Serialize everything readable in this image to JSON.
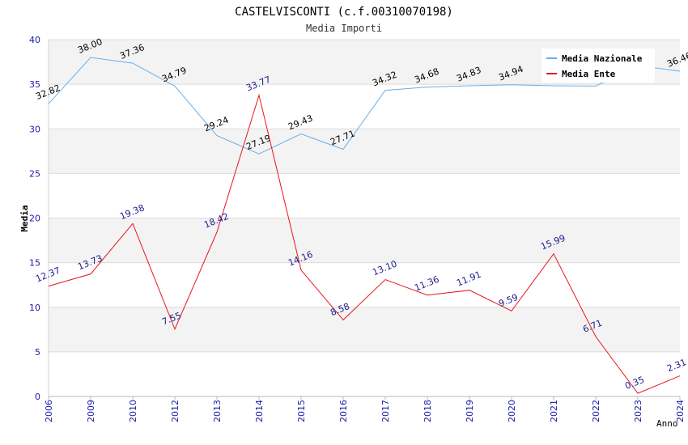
{
  "chart_data": {
    "type": "line",
    "title": "CASTELVISCONTI (c.f.00310070198)",
    "subtitle": "Media Importi",
    "xlabel": "Anno",
    "ylabel": "Media",
    "ylim": [
      0,
      40
    ],
    "yticks": [
      "0",
      "5",
      "10",
      "15",
      "20",
      "25",
      "30",
      "35",
      "40"
    ],
    "categories": [
      "2006",
      "2009",
      "2010",
      "2012",
      "2013",
      "2014",
      "2015",
      "2016",
      "2017",
      "2018",
      "2019",
      "2020",
      "2021",
      "2022",
      "2023",
      "2024"
    ],
    "legend_position": "top-right",
    "series": [
      {
        "name": "Media Nazionale",
        "color": "#6aaee6",
        "label_color": "#000000",
        "values": [
          32.82,
          38.0,
          37.36,
          34.79,
          29.24,
          27.19,
          29.43,
          27.71,
          34.32,
          34.68,
          34.83,
          34.94,
          34.83,
          34.8,
          37.1,
          36.46
        ],
        "labels": [
          "32.82",
          "38.00",
          "37.36",
          "34.79",
          "29.24",
          "27.19",
          "29.43",
          "27.71",
          "34.32",
          "34.68",
          "34.83",
          "34.94",
          "",
          "",
          "",
          "36.46"
        ]
      },
      {
        "name": "Media Ente",
        "color": "#e8141c",
        "label_color": "#1a1a8c",
        "values": [
          12.37,
          13.73,
          19.38,
          7.55,
          18.42,
          33.77,
          14.16,
          8.58,
          13.1,
          11.36,
          11.91,
          9.59,
          15.99,
          6.71,
          0.35,
          2.31
        ],
        "labels": [
          "12.37",
          "13.73",
          "19.38",
          "7.55",
          "18.42",
          "33.77",
          "14.16",
          "8.58",
          "13.10",
          "11.36",
          "11.91",
          "9.59",
          "15.99",
          "6.71",
          "0.35",
          "2.31"
        ]
      }
    ]
  }
}
